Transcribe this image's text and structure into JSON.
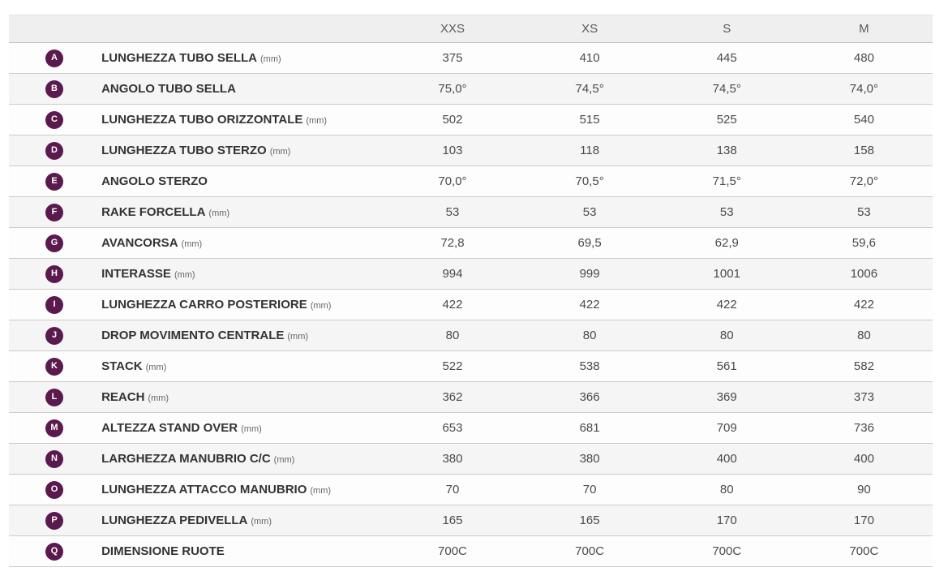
{
  "table": {
    "header": {
      "size_columns": [
        "XXS",
        "XS",
        "S",
        "M"
      ]
    },
    "rows": [
      {
        "letter": "A",
        "label": "LUNGHEZZA TUBO SELLA",
        "unit": "(mm)",
        "values": [
          "375",
          "410",
          "445",
          "480"
        ]
      },
      {
        "letter": "B",
        "label": "ANGOLO TUBO SELLA",
        "unit": "",
        "values": [
          "75,0°",
          "74,5°",
          "74,5°",
          "74,0°"
        ]
      },
      {
        "letter": "C",
        "label": "LUNGHEZZA TUBO ORIZZONTALE",
        "unit": "(mm)",
        "values": [
          "502",
          "515",
          "525",
          "540"
        ]
      },
      {
        "letter": "D",
        "label": "LUNGHEZZA TUBO STERZO",
        "unit": "(mm)",
        "values": [
          "103",
          "118",
          "138",
          "158"
        ]
      },
      {
        "letter": "E",
        "label": "ANGOLO STERZO",
        "unit": "",
        "values": [
          "70,0°",
          "70,5°",
          "71,5°",
          "72,0°"
        ]
      },
      {
        "letter": "F",
        "label": "RAKE FORCELLA",
        "unit": "(mm)",
        "values": [
          "53",
          "53",
          "53",
          "53"
        ]
      },
      {
        "letter": "G",
        "label": "AVANCORSA",
        "unit": "(mm)",
        "values": [
          "72,8",
          "69,5",
          "62,9",
          "59,6"
        ]
      },
      {
        "letter": "H",
        "label": "INTERASSE",
        "unit": "(mm)",
        "values": [
          "994",
          "999",
          "1001",
          "1006"
        ]
      },
      {
        "letter": "I",
        "label": "LUNGHEZZA CARRO POSTERIORE",
        "unit": "(mm)",
        "values": [
          "422",
          "422",
          "422",
          "422"
        ]
      },
      {
        "letter": "J",
        "label": "DROP MOVIMENTO CENTRALE",
        "unit": "(mm)",
        "values": [
          "80",
          "80",
          "80",
          "80"
        ]
      },
      {
        "letter": "K",
        "label": "STACK",
        "unit": "(mm)",
        "values": [
          "522",
          "538",
          "561",
          "582"
        ]
      },
      {
        "letter": "L",
        "label": "REACH",
        "unit": "(mm)",
        "values": [
          "362",
          "366",
          "369",
          "373"
        ]
      },
      {
        "letter": "M",
        "label": "ALTEZZA STAND OVER",
        "unit": "(mm)",
        "values": [
          "653",
          "681",
          "709",
          "736"
        ]
      },
      {
        "letter": "N",
        "label": "LARGHEZZA MANUBRIO C/C",
        "unit": "(mm)",
        "values": [
          "380",
          "380",
          "400",
          "400"
        ]
      },
      {
        "letter": "O",
        "label": "LUNGHEZZA ATTACCO MANUBRIO",
        "unit": "(mm)",
        "values": [
          "70",
          "70",
          "80",
          "90"
        ]
      },
      {
        "letter": "P",
        "label": "LUNGHEZZA PEDIVELLA",
        "unit": "(mm)",
        "values": [
          "165",
          "165",
          "170",
          "170"
        ]
      },
      {
        "letter": "Q",
        "label": "DIMENSIONE RUOTE",
        "unit": "",
        "values": [
          "700C",
          "700C",
          "700C",
          "700C"
        ]
      }
    ],
    "colors": {
      "badge": "#5a1a4e",
      "header_bg": "#efefef",
      "row_alt_bg": "#f5f5f5",
      "border": "#cbcbcb"
    }
  }
}
